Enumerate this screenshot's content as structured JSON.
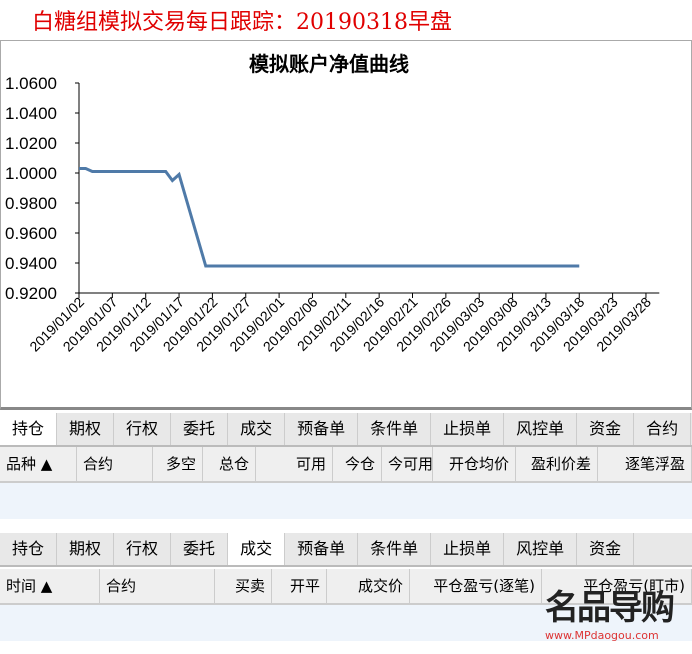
{
  "title": "白糖组模拟交易每日跟踪：20190318早盘",
  "chart_data": {
    "type": "line",
    "title": "模拟账户净值曲线",
    "ylim": [
      0.92,
      1.06
    ],
    "yticks": [
      "1.0600",
      "1.0400",
      "1.0200",
      "1.0000",
      "0.9800",
      "0.9600",
      "0.9400",
      "0.9200"
    ],
    "xticks": [
      "2019/01/02",
      "2019/01/07",
      "2019/01/12",
      "2019/01/17",
      "2019/01/22",
      "2019/01/27",
      "2019/02/01",
      "2019/02/06",
      "2019/02/11",
      "2019/02/16",
      "2019/02/21",
      "2019/02/26",
      "2019/03/03",
      "2019/03/08",
      "2019/03/13",
      "2019/03/18",
      "2019/03/23",
      "2019/03/28"
    ],
    "series": [
      {
        "color": "#4f7aa8",
        "points": [
          [
            "2019/01/02",
            1.003
          ],
          [
            "2019/01/03",
            1.003
          ],
          [
            "2019/01/04",
            1.001
          ],
          [
            "2019/01/15",
            1.001
          ],
          [
            "2019/01/16",
            0.995
          ],
          [
            "2019/01/17",
            0.999
          ],
          [
            "2019/01/21",
            0.938
          ],
          [
            "2019/03/18",
            0.938
          ]
        ]
      }
    ]
  },
  "panel1": {
    "tabs": [
      "持仓",
      "期权",
      "行权",
      "委托",
      "成交",
      "预备单",
      "条件单",
      "止损单",
      "风控单",
      "资金",
      "合约"
    ],
    "active": 0,
    "columns": [
      "品种 ▲",
      "合约",
      "多空",
      "总仓",
      "可用",
      "今仓",
      "今可用",
      "开仓均价",
      "盈利价差",
      "逐笔浮盈"
    ]
  },
  "panel2": {
    "tabs": [
      "持仓",
      "期权",
      "行权",
      "委托",
      "成交",
      "预备单",
      "条件单",
      "止损单",
      "风控单",
      "资金"
    ],
    "active": 4,
    "columns": [
      "时间 ▲",
      "合约",
      "买卖",
      "开平",
      "成交价",
      "平仓盈亏(逐笔)",
      "平仓盈亏(盯市)"
    ]
  },
  "watermark": {
    "logo": "名品导购",
    "url": "www.MPdaogou.com"
  }
}
